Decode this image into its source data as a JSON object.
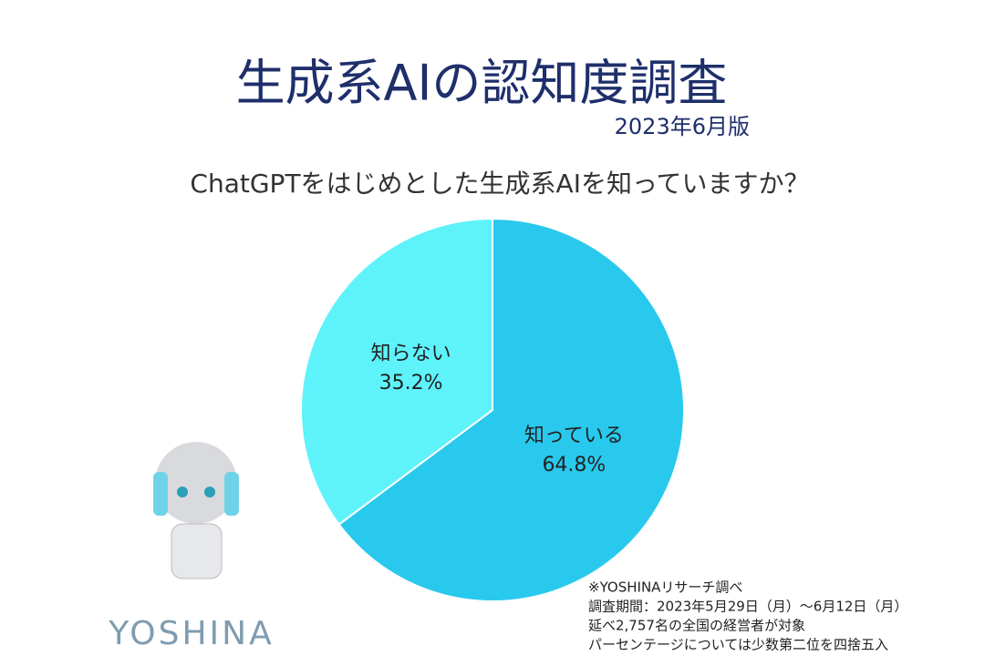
{
  "chart_data": {
    "type": "pie",
    "title": "生成系AIの認知度調査",
    "subtitle": "2023年6月版",
    "question": "ChatGPTをはじめとした生成系AIを知っていますか？",
    "categories": [
      "知っている",
      "知らない"
    ],
    "values": [
      64.8,
      35.2
    ],
    "value_labels": [
      "64.8%",
      "35.2%"
    ],
    "colors": [
      "#29c9ee",
      "#5ef3fb"
    ],
    "notes": [
      "※YOSHINAリサーチ調べ",
      "調査期間：2023年5月29日（月）～6月12日（月）",
      "延べ2,757名の全国の経営者が対象",
      "パーセンテージについては少数第二位を四捨五入"
    ],
    "logo": "YOSHINA"
  }
}
